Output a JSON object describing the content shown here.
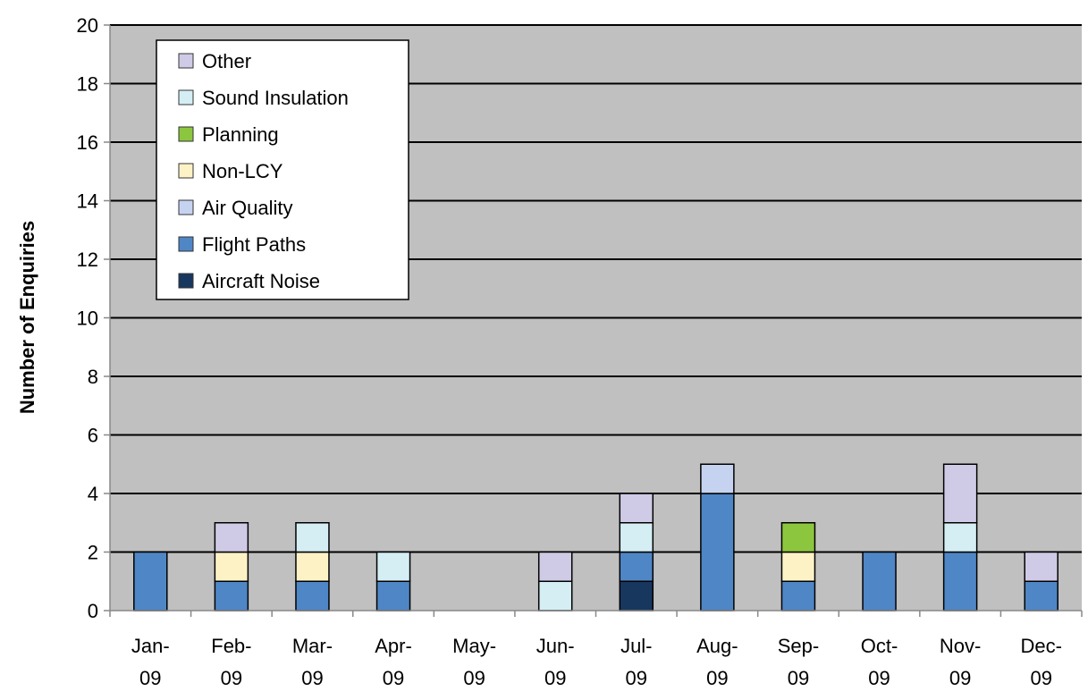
{
  "chart_data": {
    "type": "bar",
    "stacked": true,
    "title": "",
    "xlabel": "",
    "ylabel": "Number of Enquiries",
    "ylim": [
      0,
      20
    ],
    "yticks": [
      "0",
      "2",
      "4",
      "6",
      "8",
      "10",
      "12",
      "14",
      "16",
      "18",
      "20"
    ],
    "grid": true,
    "legend_position": "top-left",
    "categories": [
      "Jan-09",
      "Feb-09",
      "Mar-09",
      "Apr-09",
      "May-09",
      "Jun-09",
      "Jul-09",
      "Aug-09",
      "Sep-09",
      "Oct-09",
      "Nov-09",
      "Dec-09"
    ],
    "category_lines": [
      [
        "Jan-",
        "09"
      ],
      [
        "Feb-",
        "09"
      ],
      [
        "Mar-",
        "09"
      ],
      [
        "Apr-",
        "09"
      ],
      [
        "May-",
        "09"
      ],
      [
        "Jun-",
        "09"
      ],
      [
        "Jul-",
        "09"
      ],
      [
        "Aug-",
        "09"
      ],
      [
        "Sep-",
        "09"
      ],
      [
        "Oct-",
        "09"
      ],
      [
        "Nov-",
        "09"
      ],
      [
        "Dec-",
        "09"
      ]
    ],
    "series": [
      {
        "name": "Aircraft Noise",
        "color": "#17375e",
        "values": [
          0,
          0,
          0,
          0,
          0,
          0,
          1,
          0,
          0,
          0,
          0,
          0
        ]
      },
      {
        "name": "Flight Paths",
        "color": "#4f86c6",
        "values": [
          2,
          1,
          1,
          1,
          0,
          0,
          1,
          4,
          1,
          2,
          2,
          1
        ]
      },
      {
        "name": "Air Quality",
        "color": "#c6d3f0",
        "values": [
          0,
          0,
          0,
          0,
          0,
          0,
          0,
          1,
          0,
          0,
          0,
          0
        ]
      },
      {
        "name": "Non-LCY",
        "color": "#fdf2c6",
        "values": [
          0,
          1,
          1,
          0,
          0,
          0,
          0,
          0,
          1,
          0,
          0,
          0
        ]
      },
      {
        "name": "Planning",
        "color": "#8cc63f",
        "values": [
          0,
          0,
          0,
          0,
          0,
          0,
          0,
          0,
          1,
          0,
          0,
          0
        ]
      },
      {
        "name": "Sound Insulation",
        "color": "#d4eef4",
        "values": [
          0,
          0,
          1,
          1,
          0,
          1,
          1,
          0,
          0,
          0,
          1,
          0
        ]
      },
      {
        "name": "Other",
        "color": "#cfcbe6",
        "values": [
          0,
          1,
          0,
          0,
          0,
          1,
          1,
          0,
          0,
          0,
          2,
          1
        ]
      }
    ],
    "legend_order": [
      "Other",
      "Sound Insulation",
      "Planning",
      "Non-LCY",
      "Air Quality",
      "Flight Paths",
      "Aircraft Noise"
    ],
    "plot_background": "#c0c0c0"
  }
}
